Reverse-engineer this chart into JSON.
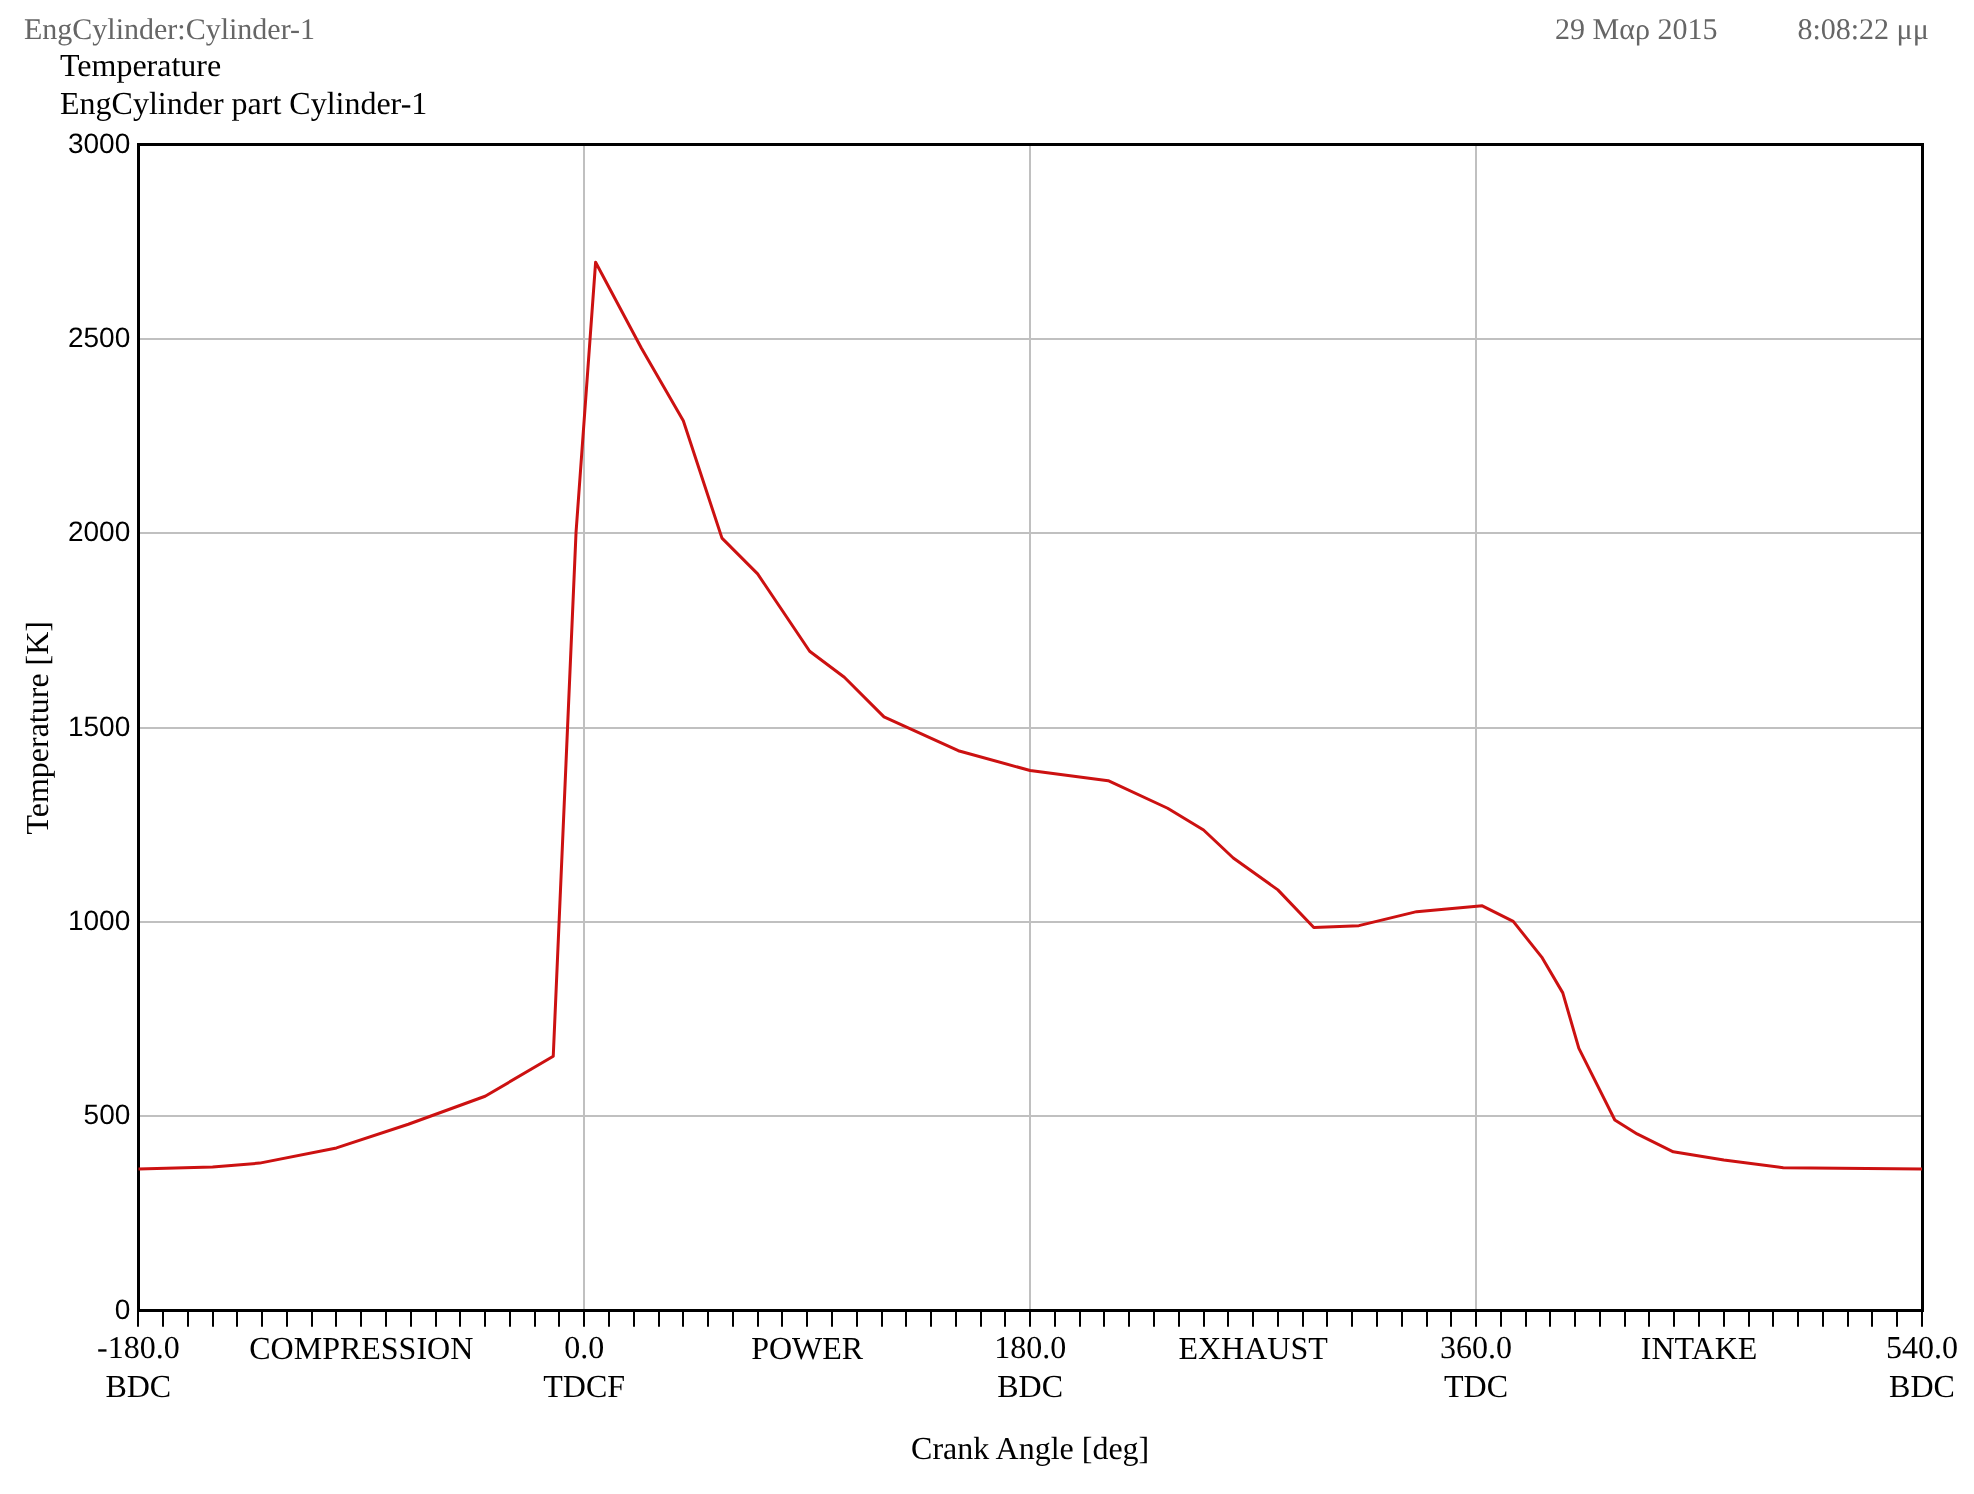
{
  "chart_data": {
    "type": "line",
    "title": "Temperature",
    "subtitle": "EngCylinder part Cylinder-1",
    "xlabel": "Crank Angle [deg]",
    "ylabel": "Temperature [K]",
    "annotations": [
      "EngCylinder:Cylinder-1",
      "29 Μαρ 2015",
      "8:08:22 μμ",
      "COMPRESSION",
      "POWER",
      "EXHAUST",
      "INTAKE"
    ],
    "x": [
      -180,
      -150,
      -131,
      -100,
      -71,
      -40,
      -12.5,
      -3.3,
      4.6,
      23,
      40,
      55.6,
      70,
      91,
      105,
      121,
      151,
      180,
      211.5,
      235.5,
      250,
      262,
      280,
      294.5,
      312.7,
      336,
      362.5,
      375,
      386.5,
      395,
      401.5,
      416,
      425,
      439.6,
      460,
      484,
      540
    ],
    "series": [
      {
        "color": "#cc1111",
        "values": [
          365,
          370,
          380,
          419,
          480,
          552,
          655,
          2003,
          2698,
          2478,
          2290,
          1988,
          1896,
          1697,
          1630,
          1528,
          1441,
          1390,
          1364,
          1293,
          1237,
          1165,
          1083,
          986,
          991,
          1027,
          1042,
          1002,
          910,
          818,
          675,
          491,
          455,
          409,
          388,
          368,
          365
        ]
      }
    ],
    "xlim": [
      -180,
      540
    ],
    "ylim": [
      0,
      3000
    ],
    "xticks": [
      {
        "value": -180,
        "label": "-180.0\nBDC"
      },
      {
        "value": -170,
        "label": null
      },
      {
        "value": -160,
        "label": null
      },
      {
        "value": -150,
        "label": null
      },
      {
        "value": -140,
        "label": null
      },
      {
        "value": -130,
        "label": null
      },
      {
        "value": -120,
        "label": null
      },
      {
        "value": -110,
        "label": null
      },
      {
        "value": -100,
        "label": null
      },
      {
        "value": -90,
        "label": null
      },
      {
        "value": -80,
        "label": null
      },
      {
        "value": -70,
        "label": null
      },
      {
        "value": -60,
        "label": null
      },
      {
        "value": -50,
        "label": null
      },
      {
        "value": -40,
        "label": null
      },
      {
        "value": -30,
        "label": null
      },
      {
        "value": -20,
        "label": null
      },
      {
        "value": -10,
        "label": null
      },
      {
        "value": 0,
        "label": "0.0\nTDCF"
      },
      {
        "value": 10,
        "label": null
      },
      {
        "value": 20,
        "label": null
      },
      {
        "value": 30,
        "label": null
      },
      {
        "value": 40,
        "label": null
      },
      {
        "value": 50,
        "label": null
      },
      {
        "value": 60,
        "label": null
      },
      {
        "value": 70,
        "label": null
      },
      {
        "value": 80,
        "label": null
      },
      {
        "value": 90,
        "label": null
      },
      {
        "value": 100,
        "label": null
      },
      {
        "value": 110,
        "label": null
      },
      {
        "value": 120,
        "label": null
      },
      {
        "value": 130,
        "label": null
      },
      {
        "value": 140,
        "label": null
      },
      {
        "value": 150,
        "label": null
      },
      {
        "value": 160,
        "label": null
      },
      {
        "value": 170,
        "label": null
      },
      {
        "value": 180,
        "label": "180.0\nBDC"
      },
      {
        "value": 190,
        "label": null
      },
      {
        "value": 200,
        "label": null
      },
      {
        "value": 210,
        "label": null
      },
      {
        "value": 220,
        "label": null
      },
      {
        "value": 230,
        "label": null
      },
      {
        "value": 240,
        "label": null
      },
      {
        "value": 250,
        "label": null
      },
      {
        "value": 260,
        "label": null
      },
      {
        "value": 270,
        "label": null
      },
      {
        "value": 280,
        "label": null
      },
      {
        "value": 290,
        "label": null
      },
      {
        "value": 300,
        "label": null
      },
      {
        "value": 310,
        "label": null
      },
      {
        "value": 320,
        "label": null
      },
      {
        "value": 330,
        "label": null
      },
      {
        "value": 340,
        "label": null
      },
      {
        "value": 350,
        "label": null
      },
      {
        "value": 360,
        "label": "360.0\nTDC"
      },
      {
        "value": 370,
        "label": null
      },
      {
        "value": 380,
        "label": null
      },
      {
        "value": 390,
        "label": null
      },
      {
        "value": 400,
        "label": null
      },
      {
        "value": 410,
        "label": null
      },
      {
        "value": 420,
        "label": null
      },
      {
        "value": 430,
        "label": null
      },
      {
        "value": 440,
        "label": null
      },
      {
        "value": 450,
        "label": null
      },
      {
        "value": 460,
        "label": null
      },
      {
        "value": 470,
        "label": null
      },
      {
        "value": 480,
        "label": null
      },
      {
        "value": 490,
        "label": null
      },
      {
        "value": 500,
        "label": null
      },
      {
        "value": 510,
        "label": null
      },
      {
        "value": 520,
        "label": null
      },
      {
        "value": 530,
        "label": null
      },
      {
        "value": 540,
        "label": "540.0\nBDC"
      }
    ],
    "yticks": [
      0,
      500,
      1000,
      1500,
      2000,
      2500,
      3000
    ],
    "grid": true,
    "legend": false,
    "marker": "none",
    "line_style": "solid"
  }
}
